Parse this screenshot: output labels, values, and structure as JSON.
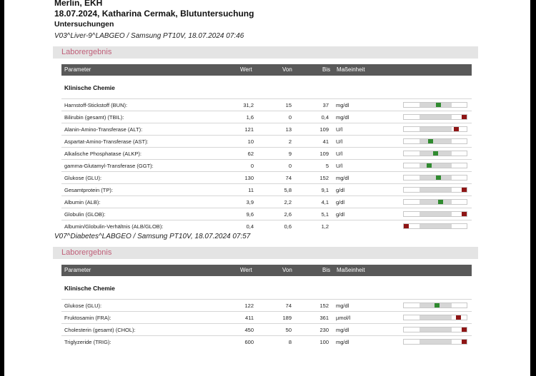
{
  "header": {
    "line1": "Merlin, EKH",
    "line2": "18.07.2024, Katharina Cermak, Blutuntersuchung",
    "line3": "Untersuchungen"
  },
  "sections": [
    {
      "label": "V03^Liver-9^LABGEO / Samsung PT10V, 18.07.2024 07:46",
      "title": "Laborergebnis",
      "columns": {
        "param": "Parameter",
        "wert": "Wert",
        "von": "Von",
        "bis": "Bis",
        "unit": "Maßeinheit"
      },
      "group": "Klinische Chemie",
      "rows": [
        {
          "name": "Harnstoff-Stickstoff (BUN):",
          "wert": "31,2",
          "von": "15",
          "bis": "37",
          "unit": "mg/dl",
          "status": "normal",
          "level": 0.6
        },
        {
          "name": "Bilirubin (gesamt) (TBIL):",
          "wert": "1,6",
          "von": "0",
          "bis": "0,4",
          "unit": "mg/dl",
          "status": "high",
          "level": 1.0
        },
        {
          "name": "Alanin-Amino-Transferase (ALT):",
          "wert": "121",
          "von": "13",
          "bis": "109",
          "unit": "U/l",
          "status": "high",
          "level": 0.86
        },
        {
          "name": "Aspartat-Amino-Transferase (AST):",
          "wert": "10",
          "von": "2",
          "bis": "41",
          "unit": "U/l",
          "status": "normal",
          "level": 0.32
        },
        {
          "name": "Alkalische Phosphatase (ALKP):",
          "wert": "62",
          "von": "9",
          "bis": "109",
          "unit": "U/l",
          "status": "normal",
          "level": 0.5
        },
        {
          "name": "gamma-Glutamyl-Transferase (GGT):",
          "wert": "0",
          "von": "0",
          "bis": "5",
          "unit": "U/l",
          "status": "normal",
          "level": 0.25
        },
        {
          "name": "Glukose (GLU):",
          "wert": "130",
          "von": "74",
          "bis": "152",
          "unit": "mg/dl",
          "status": "normal",
          "level": 0.6
        },
        {
          "name": "Gesamtprotein (TP):",
          "wert": "11",
          "von": "5,8",
          "bis": "9,1",
          "unit": "g/dl",
          "status": "high",
          "level": 1.0
        },
        {
          "name": "Albumin (ALB):",
          "wert": "3,9",
          "von": "2,2",
          "bis": "4,1",
          "unit": "g/dl",
          "status": "normal",
          "level": 0.68
        },
        {
          "name": "Globulin (GLOB):",
          "wert": "9,6",
          "von": "2,6",
          "bis": "5,1",
          "unit": "g/dl",
          "status": "high",
          "level": 1.0
        },
        {
          "name": "Albumin/Globulin-Verhältnis (ALB/GLOB):",
          "wert": "0,4",
          "von": "0,6",
          "bis": "1,2",
          "unit": "",
          "status": "low",
          "level": 0.0
        }
      ]
    },
    {
      "label": "V07^Diabetes^LABGEO / Samsung PT10V, 18.07.2024 07:57",
      "title": "Laborergebnis",
      "columns": {
        "param": "Parameter",
        "wert": "Wert",
        "von": "Von",
        "bis": "Bis",
        "unit": "Maßeinheit"
      },
      "group": "Klinische Chemie",
      "rows": [
        {
          "name": "Glukose (GLU):",
          "wert": "122",
          "von": "74",
          "bis": "152",
          "unit": "mg/dl",
          "status": "normal",
          "level": 0.55
        },
        {
          "name": "Fruktosamin (FRA):",
          "wert": "411",
          "von": "189",
          "bis": "361",
          "unit": "µmol/l",
          "status": "high",
          "level": 0.9
        },
        {
          "name": "Cholesterin (gesamt) (CHOL):",
          "wert": "450",
          "von": "50",
          "bis": "230",
          "unit": "mg/dl",
          "status": "high",
          "level": 1.0
        },
        {
          "name": "Triglyzeride (TRIG):",
          "wert": "600",
          "von": "8",
          "bis": "100",
          "unit": "mg/dl",
          "status": "high",
          "level": 1.0
        }
      ]
    }
  ]
}
